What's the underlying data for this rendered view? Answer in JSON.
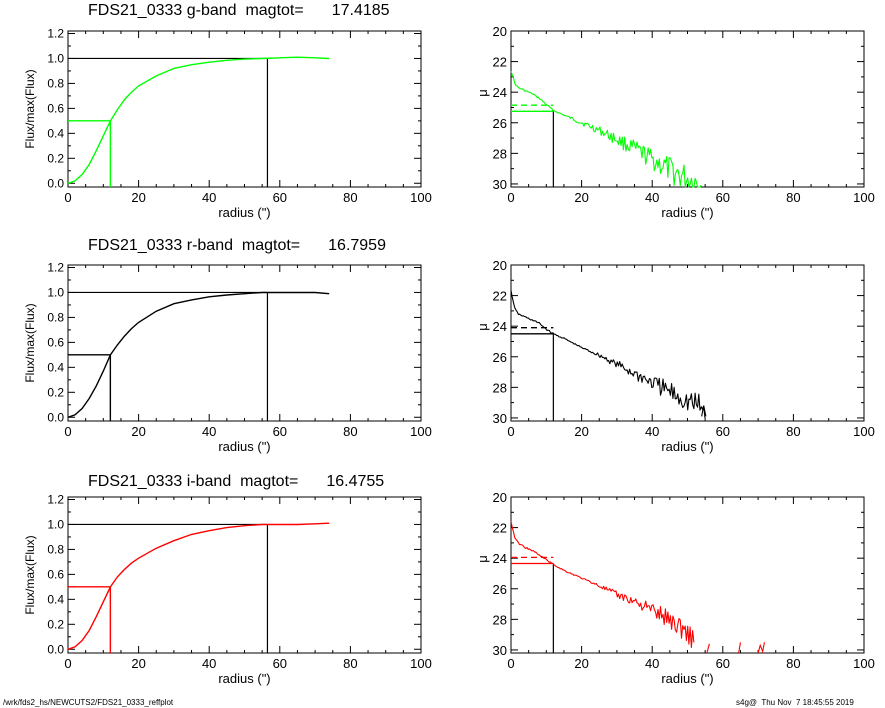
{
  "footer": {
    "left": "/wrk/fds2_hs/NEWCUTS2/FDS21_0333_reffplot",
    "right": "s4g@  Thu Nov  7 18:45:55 2019"
  },
  "rows": [
    {
      "band": "g",
      "title": "FDS21_0333 g-band  magtot=",
      "magtot": "17.4185",
      "color": "#00ff00",
      "growth": {
        "xlabel": "radius (\")",
        "ylabel": "Flux/max(Flux)",
        "xlim": [
          0,
          100
        ],
        "ylim": [
          -0.03,
          1.22
        ],
        "xticks": [
          0,
          20,
          40,
          60,
          80,
          100
        ],
        "yticks": [
          "0.0",
          "0.2",
          "0.4",
          "0.6",
          "0.8",
          "1.0",
          "1.2"
        ],
        "re": 12,
        "rmax": 56.5,
        "curve": [
          [
            0,
            0
          ],
          [
            2,
            0.02
          ],
          [
            4,
            0.07
          ],
          [
            6,
            0.15
          ],
          [
            8,
            0.26
          ],
          [
            10,
            0.38
          ],
          [
            12,
            0.5
          ],
          [
            14,
            0.59
          ],
          [
            16,
            0.67
          ],
          [
            18,
            0.73
          ],
          [
            20,
            0.78
          ],
          [
            25,
            0.86
          ],
          [
            30,
            0.92
          ],
          [
            35,
            0.95
          ],
          [
            40,
            0.97
          ],
          [
            45,
            0.985
          ],
          [
            50,
            0.995
          ],
          [
            55,
            1.0
          ],
          [
            60,
            1.005
          ],
          [
            65,
            1.01
          ],
          [
            70,
            1.005
          ],
          [
            74,
            1.0
          ]
        ]
      },
      "profile": {
        "xlabel": "radius (\")",
        "ylabel": "μ",
        "xlim": [
          0,
          100
        ],
        "ylim": [
          30.2,
          20.0
        ],
        "xticks": [
          0,
          20,
          40,
          60,
          80,
          100
        ],
        "yticks": [
          "20",
          "22",
          "24",
          "26",
          "28",
          "30"
        ],
        "re": 12,
        "mu_e": 25.25,
        "mu_mean": 24.85,
        "anchor": [
          [
            0,
            22.6
          ],
          [
            0.5,
            22.9
          ],
          [
            1,
            23.4
          ],
          [
            2,
            23.7
          ],
          [
            4,
            23.9
          ],
          [
            6,
            24.1
          ],
          [
            8,
            24.4
          ],
          [
            10,
            24.8
          ],
          [
            12,
            25.2
          ],
          [
            15,
            25.5
          ],
          [
            20,
            26.0
          ],
          [
            25,
            26.5
          ],
          [
            30,
            27.1
          ],
          [
            35,
            27.7
          ],
          [
            40,
            28.4
          ],
          [
            45,
            29.1
          ],
          [
            50,
            29.7
          ],
          [
            54,
            30.1
          ]
        ]
      }
    },
    {
      "band": "r",
      "title": "FDS21_0333 r-band  magtot=",
      "magtot": "16.7959",
      "color": "#000000",
      "growth": {
        "xlabel": "radius (\")",
        "ylabel": "Flux/max(Flux)",
        "xlim": [
          0,
          100
        ],
        "ylim": [
          -0.03,
          1.22
        ],
        "xticks": [
          0,
          20,
          40,
          60,
          80,
          100
        ],
        "yticks": [
          "0.0",
          "0.2",
          "0.4",
          "0.6",
          "0.8",
          "1.0",
          "1.2"
        ],
        "re": 12,
        "rmax": 56.5,
        "curve": [
          [
            0,
            0
          ],
          [
            2,
            0.02
          ],
          [
            4,
            0.07
          ],
          [
            6,
            0.15
          ],
          [
            8,
            0.25
          ],
          [
            10,
            0.37
          ],
          [
            12,
            0.5
          ],
          [
            14,
            0.58
          ],
          [
            16,
            0.65
          ],
          [
            18,
            0.71
          ],
          [
            20,
            0.76
          ],
          [
            25,
            0.85
          ],
          [
            30,
            0.91
          ],
          [
            35,
            0.94
          ],
          [
            40,
            0.965
          ],
          [
            45,
            0.98
          ],
          [
            50,
            0.99
          ],
          [
            55,
            1.0
          ],
          [
            60,
            1.0
          ],
          [
            65,
            1.0
          ],
          [
            70,
            1.0
          ],
          [
            74,
            0.99
          ]
        ]
      },
      "profile": {
        "xlabel": "radius (\")",
        "ylabel": "μ",
        "xlim": [
          0,
          100
        ],
        "ylim": [
          30.2,
          20.0
        ],
        "xticks": [
          0,
          20,
          40,
          60,
          80,
          100
        ],
        "yticks": [
          "20",
          "22",
          "24",
          "26",
          "28",
          "30"
        ],
        "re": 12,
        "mu_e": 24.5,
        "mu_mean": 24.1,
        "anchor": [
          [
            0,
            21.7
          ],
          [
            0.5,
            22.2
          ],
          [
            1,
            22.8
          ],
          [
            2,
            23.2
          ],
          [
            4,
            23.4
          ],
          [
            6,
            23.6
          ],
          [
            8,
            23.8
          ],
          [
            10,
            24.2
          ],
          [
            12,
            24.5
          ],
          [
            15,
            24.8
          ],
          [
            20,
            25.4
          ],
          [
            25,
            25.9
          ],
          [
            30,
            26.5
          ],
          [
            35,
            27.1
          ],
          [
            40,
            27.7
          ],
          [
            45,
            28.3
          ],
          [
            50,
            28.9
          ],
          [
            53,
            29.2
          ],
          [
            55,
            29.6
          ]
        ]
      }
    },
    {
      "band": "i",
      "title": "FDS21_0333 i-band  magtot=",
      "magtot": "16.4755",
      "color": "#ff0000",
      "growth": {
        "xlabel": "radius (\")",
        "ylabel": "Flux/max(Flux)",
        "xlim": [
          0,
          100
        ],
        "ylim": [
          -0.03,
          1.22
        ],
        "xticks": [
          0,
          20,
          40,
          60,
          80,
          100
        ],
        "yticks": [
          "0.0",
          "0.2",
          "0.4",
          "0.6",
          "0.8",
          "1.0",
          "1.2"
        ],
        "re": 12,
        "rmax": 56.5,
        "curve": [
          [
            0,
            0
          ],
          [
            2,
            0.02
          ],
          [
            4,
            0.07
          ],
          [
            6,
            0.15
          ],
          [
            8,
            0.26
          ],
          [
            10,
            0.38
          ],
          [
            12,
            0.5
          ],
          [
            14,
            0.58
          ],
          [
            16,
            0.64
          ],
          [
            18,
            0.69
          ],
          [
            20,
            0.73
          ],
          [
            25,
            0.81
          ],
          [
            30,
            0.87
          ],
          [
            35,
            0.92
          ],
          [
            40,
            0.95
          ],
          [
            45,
            0.975
          ],
          [
            50,
            0.99
          ],
          [
            55,
            1.0
          ],
          [
            60,
            1.0
          ],
          [
            65,
            1.0
          ],
          [
            70,
            1.005
          ],
          [
            74,
            1.01
          ]
        ]
      },
      "profile": {
        "xlabel": "radius (\")",
        "ylabel": "μ",
        "xlim": [
          0,
          100
        ],
        "ylim": [
          30.2,
          20.0
        ],
        "xticks": [
          0,
          20,
          40,
          60,
          80,
          100
        ],
        "yticks": [
          "20",
          "22",
          "24",
          "26",
          "28",
          "30"
        ],
        "re": 12,
        "mu_e": 24.35,
        "mu_mean": 23.95,
        "anchor": [
          [
            0,
            21.6
          ],
          [
            0.5,
            22.1
          ],
          [
            1,
            22.6
          ],
          [
            2,
            23.0
          ],
          [
            4,
            23.3
          ],
          [
            6,
            23.5
          ],
          [
            8,
            23.8
          ],
          [
            10,
            24.1
          ],
          [
            12,
            24.4
          ],
          [
            15,
            24.8
          ],
          [
            20,
            25.3
          ],
          [
            25,
            25.8
          ],
          [
            30,
            26.4
          ],
          [
            35,
            26.8
          ],
          [
            40,
            27.4
          ],
          [
            45,
            28.0
          ],
          [
            50,
            28.8
          ],
          [
            52,
            29.5
          ]
        ]
      }
    }
  ]
}
